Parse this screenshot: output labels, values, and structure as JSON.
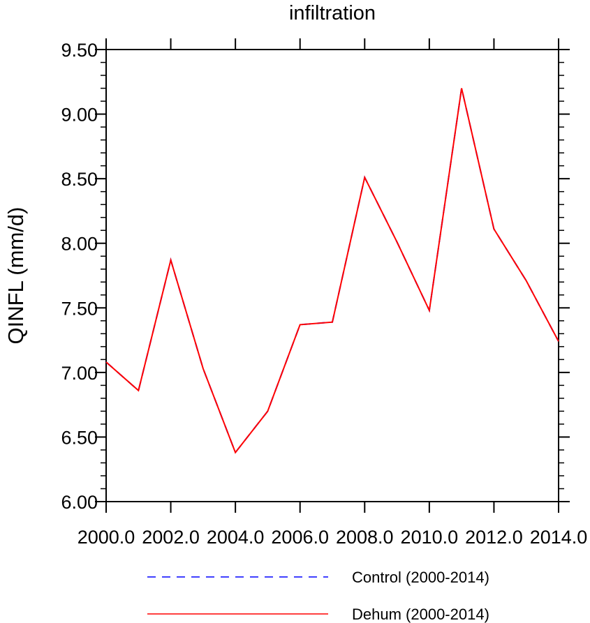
{
  "chart_data": {
    "type": "line",
    "title": "infiltration",
    "xlabel": "",
    "ylabel": "QINFL  (mm/d)",
    "xlim": [
      2000,
      2014
    ],
    "ylim": [
      6.0,
      9.5
    ],
    "x": [
      2000,
      2001,
      2002,
      2003,
      2004,
      2005,
      2006,
      2007,
      2008,
      2009,
      2010,
      2011,
      2012,
      2013,
      2014
    ],
    "x_ticks": [
      2000,
      2002,
      2004,
      2006,
      2008,
      2010,
      2012,
      2014
    ],
    "x_tick_labels": [
      "2000.0",
      "2002.0",
      "2004.0",
      "2006.0",
      "2008.0",
      "2010.0",
      "2012.0",
      "2014.0"
    ],
    "y_ticks": [
      6.0,
      6.5,
      7.0,
      7.5,
      8.0,
      8.5,
      9.0,
      9.5
    ],
    "y_tick_labels": [
      "6.00",
      "6.50",
      "7.00",
      "7.50",
      "8.00",
      "8.50",
      "9.00",
      "9.50"
    ],
    "grid": false,
    "legend_position": "bottom",
    "series": [
      {
        "name": "Control (2000-2014)",
        "color": "#0000ff",
        "style": "dashed",
        "values": [
          7.08,
          6.86,
          7.87,
          7.03,
          6.38,
          6.7,
          7.37,
          7.39,
          8.51,
          8.01,
          7.48,
          9.2,
          8.11,
          7.71,
          7.24
        ]
      },
      {
        "name": "Dehum (2000-2014)",
        "color": "#ff0000",
        "style": "solid",
        "values": [
          7.08,
          6.86,
          7.87,
          7.03,
          6.38,
          6.7,
          7.37,
          7.39,
          8.51,
          8.01,
          7.48,
          9.2,
          8.11,
          7.71,
          7.24
        ]
      }
    ]
  }
}
